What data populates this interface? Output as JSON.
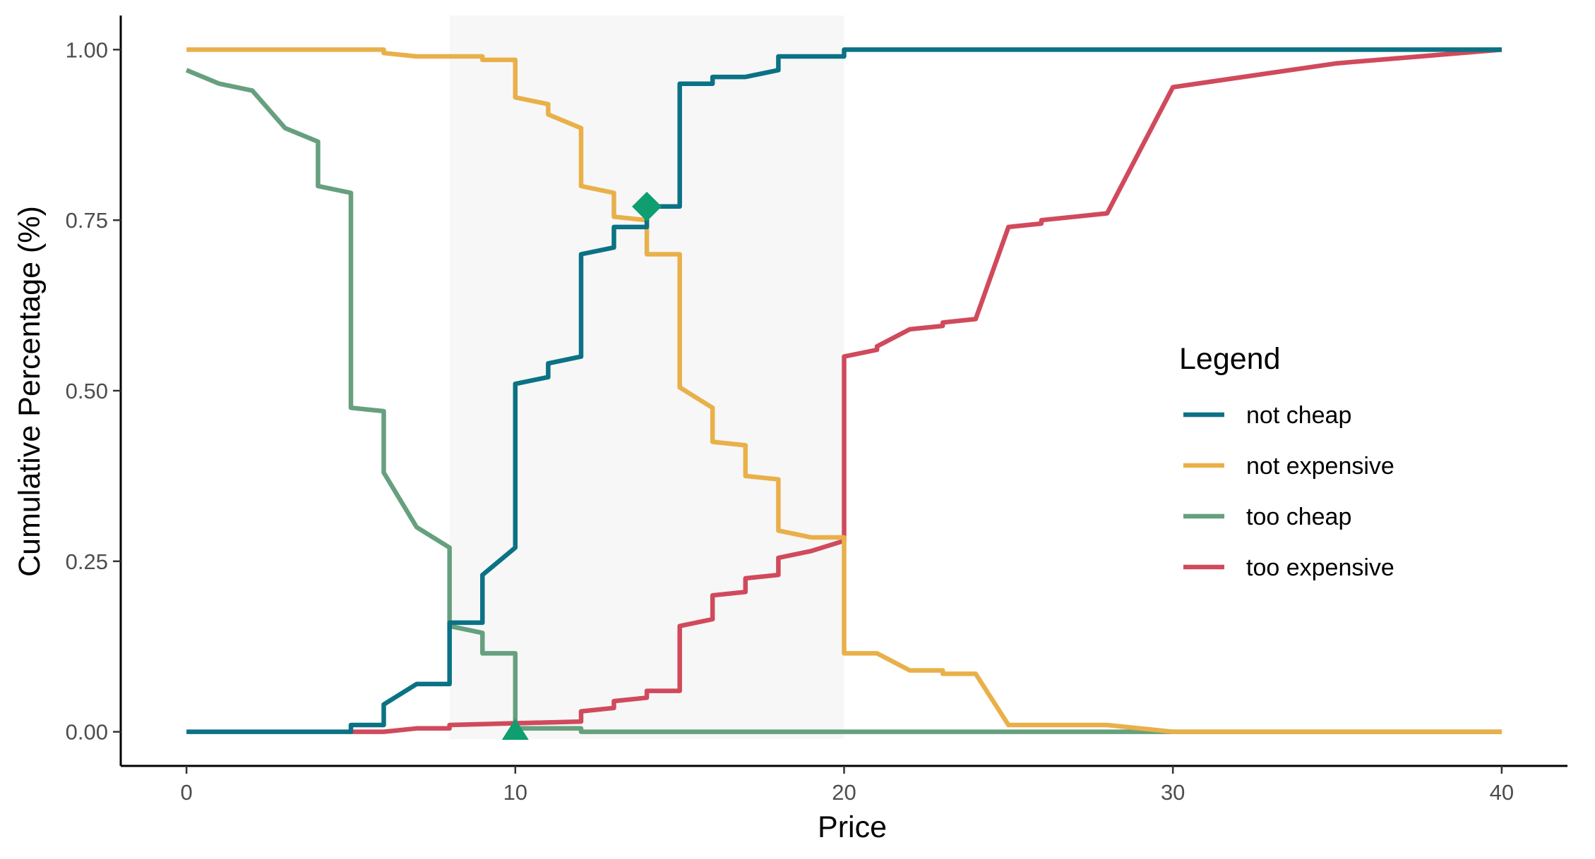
{
  "chart_data": {
    "type": "line",
    "xlabel": "Price",
    "ylabel": "Cumulative Percentage (%)",
    "xlim": [
      -2,
      42
    ],
    "ylim": [
      -0.05,
      1.05
    ],
    "x_ticks": [
      0,
      10,
      20,
      30,
      40
    ],
    "x_tick_labels": [
      "0",
      "10",
      "20",
      "30",
      "40"
    ],
    "y_ticks": [
      0,
      0.25,
      0.5,
      0.75,
      1.0
    ],
    "y_tick_labels": [
      "0.00",
      "0.25",
      "0.50",
      "0.75",
      "1.00"
    ],
    "grid": false,
    "legend": {
      "title": "Legend",
      "position": "right"
    },
    "shaded_range": {
      "x": [
        8,
        20
      ],
      "color": "#f7f7f7"
    },
    "series": [
      {
        "name": "not cheap",
        "color": "#0b7285",
        "points": [
          [
            0,
            0
          ],
          [
            5,
            0
          ],
          [
            5,
            0.01
          ],
          [
            6,
            0.01
          ],
          [
            6,
            0.04
          ],
          [
            7,
            0.07
          ],
          [
            8,
            0.07
          ],
          [
            8,
            0.16
          ],
          [
            9,
            0.16
          ],
          [
            9,
            0.23
          ],
          [
            10,
            0.27
          ],
          [
            10,
            0.51
          ],
          [
            11,
            0.52
          ],
          [
            11,
            0.54
          ],
          [
            12,
            0.55
          ],
          [
            12,
            0.7
          ],
          [
            13,
            0.71
          ],
          [
            13,
            0.74
          ],
          [
            14,
            0.74
          ],
          [
            14,
            0.77
          ],
          [
            15,
            0.77
          ],
          [
            15,
            0.95
          ],
          [
            16,
            0.95
          ],
          [
            16,
            0.96
          ],
          [
            17,
            0.96
          ],
          [
            18,
            0.97
          ],
          [
            18,
            0.99
          ],
          [
            20,
            0.99
          ],
          [
            20,
            1.0
          ],
          [
            40,
            1.0
          ]
        ]
      },
      {
        "name": "not expensive",
        "color": "#e9b04a",
        "points": [
          [
            0,
            1.0
          ],
          [
            6,
            1.0
          ],
          [
            6,
            0.995
          ],
          [
            7,
            0.99
          ],
          [
            9,
            0.99
          ],
          [
            9,
            0.985
          ],
          [
            10,
            0.985
          ],
          [
            10,
            0.93
          ],
          [
            11,
            0.92
          ],
          [
            11,
            0.905
          ],
          [
            12,
            0.885
          ],
          [
            12,
            0.8
          ],
          [
            13,
            0.79
          ],
          [
            13,
            0.755
          ],
          [
            14,
            0.75
          ],
          [
            14,
            0.7
          ],
          [
            15,
            0.7
          ],
          [
            15,
            0.505
          ],
          [
            16,
            0.475
          ],
          [
            16,
            0.425
          ],
          [
            17,
            0.42
          ],
          [
            17,
            0.375
          ],
          [
            18,
            0.37
          ],
          [
            18,
            0.295
          ],
          [
            19,
            0.285
          ],
          [
            20,
            0.285
          ],
          [
            20,
            0.115
          ],
          [
            21,
            0.115
          ],
          [
            22,
            0.09
          ],
          [
            23,
            0.09
          ],
          [
            23,
            0.085
          ],
          [
            24,
            0.085
          ],
          [
            25,
            0.01
          ],
          [
            28,
            0.01
          ],
          [
            30,
            0.0
          ],
          [
            40,
            0.0
          ]
        ]
      },
      {
        "name": "too cheap",
        "color": "#66a07e",
        "points": [
          [
            0,
            0.97
          ],
          [
            1,
            0.95
          ],
          [
            2,
            0.94
          ],
          [
            3,
            0.885
          ],
          [
            4,
            0.865
          ],
          [
            4,
            0.8
          ],
          [
            5,
            0.79
          ],
          [
            5,
            0.475
          ],
          [
            6,
            0.47
          ],
          [
            6,
            0.38
          ],
          [
            7,
            0.3
          ],
          [
            8,
            0.27
          ],
          [
            8,
            0.155
          ],
          [
            9,
            0.145
          ],
          [
            9,
            0.115
          ],
          [
            10,
            0.115
          ],
          [
            10,
            0.005
          ],
          [
            12,
            0.005
          ],
          [
            12,
            0.0
          ],
          [
            40,
            0.0
          ]
        ]
      },
      {
        "name": "too expensive",
        "color": "#d04a5c",
        "points": [
          [
            5,
            0
          ],
          [
            6,
            0
          ],
          [
            7,
            0.005
          ],
          [
            8,
            0.005
          ],
          [
            8,
            0.01
          ],
          [
            12,
            0.015
          ],
          [
            12,
            0.03
          ],
          [
            13,
            0.035
          ],
          [
            13,
            0.045
          ],
          [
            14,
            0.05
          ],
          [
            14,
            0.06
          ],
          [
            15,
            0.06
          ],
          [
            15,
            0.155
          ],
          [
            16,
            0.165
          ],
          [
            16,
            0.2
          ],
          [
            17,
            0.205
          ],
          [
            17,
            0.225
          ],
          [
            18,
            0.23
          ],
          [
            18,
            0.255
          ],
          [
            19,
            0.265
          ],
          [
            20,
            0.28
          ],
          [
            20,
            0.55
          ],
          [
            21,
            0.56
          ],
          [
            21,
            0.565
          ],
          [
            22,
            0.59
          ],
          [
            23,
            0.595
          ],
          [
            23,
            0.6
          ],
          [
            24,
            0.605
          ],
          [
            25,
            0.74
          ],
          [
            26,
            0.745
          ],
          [
            26,
            0.75
          ],
          [
            28,
            0.76
          ],
          [
            30,
            0.945
          ],
          [
            35,
            0.98
          ],
          [
            40,
            1.0
          ]
        ]
      }
    ],
    "markers": [
      {
        "shape": "diamond",
        "x": 14,
        "y": 0.77,
        "color": "#0e9e6f"
      },
      {
        "shape": "triangle",
        "x": 10,
        "y": 0.0,
        "color": "#0e9e6f"
      }
    ]
  }
}
